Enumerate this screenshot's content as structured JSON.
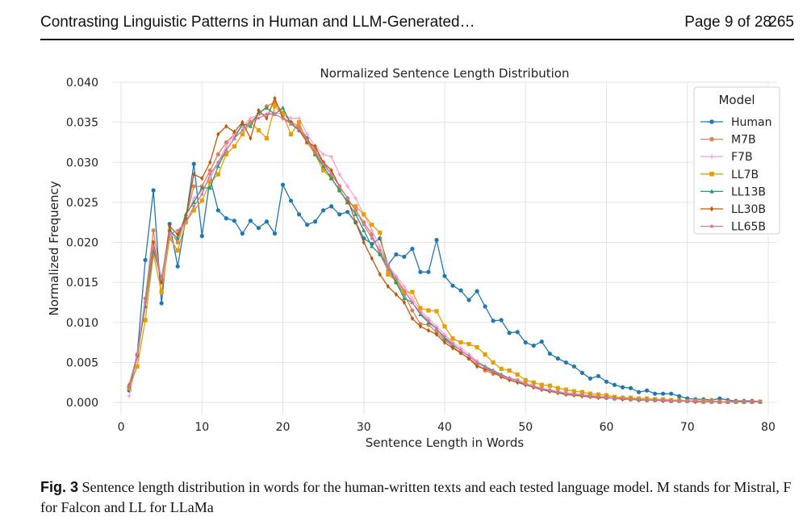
{
  "header": {
    "title": "Contrasting Linguistic Patterns in Human and LLM-Generated…",
    "page_info": "Page 9 of 28",
    "page_number": "265"
  },
  "caption": {
    "label": "Fig. 3",
    "text": "Sentence length distribution in words for the human-written texts and each tested language model. M stands for Mistral, F for Falcon and LL for LLaMa"
  },
  "chart_data": {
    "type": "line",
    "title": "Normalized Sentence Length Distribution",
    "xlabel": "Sentence Length in Words",
    "ylabel": "Normalized Frequency",
    "xlim": [
      -1,
      81
    ],
    "ylim": [
      -0.0015,
      0.04
    ],
    "xticks": [
      0,
      10,
      20,
      30,
      40,
      50,
      60,
      70,
      80
    ],
    "yticks": [
      0.0,
      0.005,
      0.01,
      0.015,
      0.02,
      0.025,
      0.03,
      0.035,
      0.04
    ],
    "ytick_labels": [
      "0.000",
      "0.005",
      "0.010",
      "0.015",
      "0.020",
      "0.025",
      "0.030",
      "0.035",
      "0.040"
    ],
    "grid": true,
    "legend_title": "Model",
    "legend_position": "top-right",
    "x": [
      1,
      2,
      3,
      4,
      5,
      6,
      7,
      8,
      9,
      10,
      11,
      12,
      13,
      14,
      15,
      16,
      17,
      18,
      19,
      20,
      21,
      22,
      23,
      24,
      25,
      26,
      27,
      28,
      29,
      30,
      31,
      32,
      33,
      34,
      35,
      36,
      37,
      38,
      39,
      40,
      41,
      42,
      43,
      44,
      45,
      46,
      47,
      48,
      49,
      50,
      51,
      52,
      53,
      54,
      55,
      56,
      57,
      58,
      59,
      60,
      61,
      62,
      63,
      64,
      65,
      66,
      67,
      68,
      69,
      70,
      71,
      72,
      73,
      74,
      75,
      76,
      77,
      78,
      79
    ],
    "series": [
      {
        "name": "Human",
        "color": "#1f77b4",
        "marker": "circle",
        "values": [
          0.0015,
          0.006,
          0.0178,
          0.0265,
          0.0124,
          0.0223,
          0.017,
          0.023,
          0.0298,
          0.0208,
          0.028,
          0.024,
          0.023,
          0.0227,
          0.0211,
          0.0227,
          0.0218,
          0.0226,
          0.0211,
          0.0272,
          0.0252,
          0.0235,
          0.0222,
          0.0226,
          0.024,
          0.0245,
          0.0235,
          0.0238,
          0.0225,
          0.0205,
          0.0198,
          0.0205,
          0.0172,
          0.0185,
          0.0182,
          0.0192,
          0.0163,
          0.0163,
          0.0203,
          0.0158,
          0.0146,
          0.014,
          0.0128,
          0.0139,
          0.012,
          0.0102,
          0.0103,
          0.0087,
          0.0088,
          0.0075,
          0.0071,
          0.0076,
          0.0061,
          0.0055,
          0.005,
          0.0045,
          0.0037,
          0.003,
          0.0033,
          0.0026,
          0.0022,
          0.0019,
          0.0018,
          0.0013,
          0.0015,
          0.0011,
          0.0011,
          0.0011,
          0.0008,
          0.0005,
          0.0004,
          0.0004,
          0.0003,
          0.0005,
          0.0003,
          0.0002,
          0.0002,
          0.0002,
          0.0001
        ]
      },
      {
        "name": "M7B",
        "color": "#d9835a",
        "marker": "circle",
        "values": [
          0.002,
          0.006,
          0.013,
          0.0215,
          0.015,
          0.0215,
          0.02,
          0.023,
          0.027,
          0.027,
          0.029,
          0.031,
          0.0325,
          0.0335,
          0.0345,
          0.035,
          0.036,
          0.037,
          0.0375,
          0.0362,
          0.035,
          0.0345,
          0.033,
          0.0315,
          0.03,
          0.0285,
          0.027,
          0.0255,
          0.024,
          0.0225,
          0.021,
          0.0185,
          0.0165,
          0.015,
          0.0135,
          0.0115,
          0.0098,
          0.0097,
          0.0088,
          0.0078,
          0.007,
          0.0062,
          0.0055,
          0.0048,
          0.004,
          0.0036,
          0.0033,
          0.003,
          0.0028,
          0.0024,
          0.002,
          0.0018,
          0.0015,
          0.0013,
          0.0011,
          0.001,
          0.0009,
          0.0008,
          0.0007,
          0.0006,
          0.0005,
          0.0005,
          0.0004,
          0.0004,
          0.0003,
          0.0003,
          0.0003,
          0.0002,
          0.0002,
          0.0002,
          0.0002,
          0.0001,
          0.0001,
          0.0001,
          0.0001,
          0.0001,
          0.0001,
          0.0001,
          0.0001
        ]
      },
      {
        "name": "F7B",
        "color": "#f2a7d8",
        "marker": "plus",
        "values": [
          0.0008,
          0.0055,
          0.0125,
          0.02,
          0.015,
          0.021,
          0.0205,
          0.023,
          0.0255,
          0.0265,
          0.028,
          0.03,
          0.032,
          0.0335,
          0.0345,
          0.0355,
          0.036,
          0.036,
          0.0362,
          0.036,
          0.0355,
          0.0355,
          0.0335,
          0.032,
          0.031,
          0.0307,
          0.0285,
          0.027,
          0.0255,
          0.0235,
          0.0215,
          0.0195,
          0.0172,
          0.0158,
          0.0145,
          0.013,
          0.0115,
          0.0105,
          0.0095,
          0.0085,
          0.0075,
          0.0068,
          0.006,
          0.0052,
          0.0045,
          0.004,
          0.0035,
          0.0031,
          0.0028,
          0.0024,
          0.0021,
          0.0018,
          0.0016,
          0.0014,
          0.0012,
          0.0011,
          0.001,
          0.0009,
          0.0008,
          0.0007,
          0.0006,
          0.0005,
          0.0005,
          0.0004,
          0.0004,
          0.0003,
          0.0003,
          0.0003,
          0.0002,
          0.0002,
          0.0002,
          0.0002,
          0.0001,
          0.0001,
          0.0001,
          0.0001,
          0.0001,
          0.0001,
          0.0001
        ]
      },
      {
        "name": "LL7B",
        "color": "#e69f00",
        "marker": "square",
        "values": [
          0.0018,
          0.0045,
          0.0103,
          0.0185,
          0.0138,
          0.0205,
          0.019,
          0.0225,
          0.024,
          0.0252,
          0.0275,
          0.0285,
          0.031,
          0.032,
          0.0335,
          0.035,
          0.034,
          0.033,
          0.037,
          0.036,
          0.0335,
          0.035,
          0.0325,
          0.031,
          0.029,
          0.028,
          0.0265,
          0.025,
          0.0245,
          0.0235,
          0.0222,
          0.0212,
          0.016,
          0.0152,
          0.0138,
          0.0138,
          0.0118,
          0.0115,
          0.0114,
          0.0095,
          0.008,
          0.0075,
          0.0073,
          0.0069,
          0.006,
          0.005,
          0.0042,
          0.004,
          0.0035,
          0.0028,
          0.0025,
          0.0022,
          0.0021,
          0.0018,
          0.0016,
          0.0014,
          0.0013,
          0.0011,
          0.001,
          0.0009,
          0.0007,
          0.0006,
          0.0006,
          0.0005,
          0.0005,
          0.0004,
          0.0004,
          0.0003,
          0.0003,
          0.0002,
          0.0002,
          0.0002,
          0.0002,
          0.0001,
          0.0001,
          0.0001,
          0.0001,
          0.0001,
          0.0001
        ]
      },
      {
        "name": "LL13B",
        "color": "#1f9e6e",
        "marker": "triangle",
        "values": [
          0.002,
          0.006,
          0.012,
          0.019,
          0.0155,
          0.0215,
          0.0205,
          0.0235,
          0.025,
          0.0268,
          0.0268,
          0.0295,
          0.0315,
          0.033,
          0.0348,
          0.0345,
          0.0362,
          0.0368,
          0.036,
          0.0368,
          0.0348,
          0.034,
          0.033,
          0.031,
          0.0295,
          0.028,
          0.0265,
          0.025,
          0.0235,
          0.0215,
          0.0195,
          0.0185,
          0.017,
          0.015,
          0.013,
          0.0125,
          0.011,
          0.01,
          0.0092,
          0.008,
          0.0072,
          0.0065,
          0.0058,
          0.005,
          0.0045,
          0.004,
          0.0035,
          0.003,
          0.0027,
          0.0023,
          0.002,
          0.0017,
          0.0015,
          0.0013,
          0.0011,
          0.001,
          0.0009,
          0.0008,
          0.0007,
          0.0006,
          0.0005,
          0.0005,
          0.0004,
          0.0004,
          0.0003,
          0.0003,
          0.0003,
          0.0002,
          0.0002,
          0.0002,
          0.0002,
          0.0001,
          0.0001,
          0.0001,
          0.0001,
          0.0001,
          0.0001,
          0.0001,
          0.0001
        ]
      },
      {
        "name": "LL30B",
        "color": "#c2570c",
        "marker": "diamond",
        "values": [
          0.0022,
          0.0058,
          0.0125,
          0.02,
          0.015,
          0.022,
          0.021,
          0.023,
          0.0285,
          0.028,
          0.03,
          0.0335,
          0.0345,
          0.0338,
          0.035,
          0.033,
          0.0365,
          0.0355,
          0.038,
          0.0355,
          0.035,
          0.034,
          0.0325,
          0.032,
          0.03,
          0.029,
          0.027,
          0.0255,
          0.0225,
          0.02,
          0.018,
          0.016,
          0.0145,
          0.0135,
          0.0125,
          0.0105,
          0.0095,
          0.009,
          0.0085,
          0.0075,
          0.0068,
          0.0062,
          0.0055,
          0.0045,
          0.0042,
          0.0038,
          0.0032,
          0.0028,
          0.0025,
          0.0022,
          0.0019,
          0.0016,
          0.0014,
          0.0012,
          0.001,
          0.0009,
          0.0008,
          0.0007,
          0.0006,
          0.0006,
          0.0005,
          0.0004,
          0.0004,
          0.0003,
          0.0003,
          0.0003,
          0.0002,
          0.0002,
          0.0002,
          0.0002,
          0.0001,
          0.0001,
          0.0001,
          0.0001,
          0.0001,
          0.0001,
          0.0001,
          0.0001,
          0.0001
        ]
      },
      {
        "name": "LL65B",
        "color": "#cc79a7",
        "marker": "dot",
        "values": [
          0.002,
          0.006,
          0.0125,
          0.0195,
          0.0155,
          0.021,
          0.0215,
          0.0225,
          0.0245,
          0.026,
          0.0285,
          0.03,
          0.0315,
          0.033,
          0.034,
          0.035,
          0.0355,
          0.036,
          0.036,
          0.0355,
          0.0348,
          0.0342,
          0.0328,
          0.0312,
          0.0298,
          0.0285,
          0.027,
          0.0255,
          0.024,
          0.0222,
          0.0205,
          0.019,
          0.017,
          0.0155,
          0.014,
          0.0125,
          0.0112,
          0.0102,
          0.0092,
          0.0082,
          0.0073,
          0.0065,
          0.0058,
          0.005,
          0.0044,
          0.0039,
          0.0034,
          0.003,
          0.0027,
          0.0023,
          0.002,
          0.0017,
          0.0015,
          0.0013,
          0.0011,
          0.001,
          0.0009,
          0.0008,
          0.0007,
          0.0006,
          0.0005,
          0.0005,
          0.0004,
          0.0004,
          0.0003,
          0.0003,
          0.0003,
          0.0002,
          0.0002,
          0.0002,
          0.0002,
          0.0001,
          0.0001,
          0.0001,
          0.0001,
          0.0001,
          0.0001,
          0.0001,
          0.0001
        ]
      }
    ]
  }
}
